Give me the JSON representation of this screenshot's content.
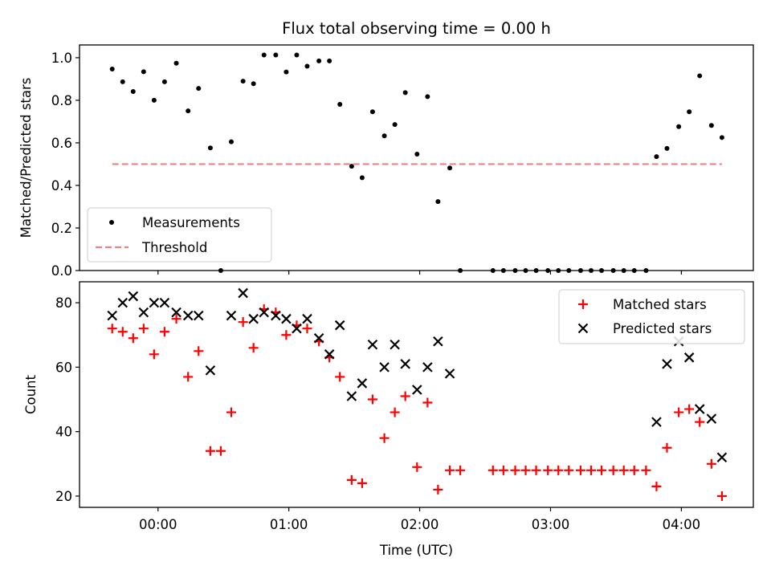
{
  "chart_data": [
    {
      "type": "scatter",
      "title": "Flux total observing time = 0.00 h",
      "xlabel": "",
      "ylabel": "Matched/Predicted stars",
      "ylim": [
        0,
        1.06
      ],
      "yticks": [
        "0.0",
        "0.2",
        "0.4",
        "0.6",
        "0.8",
        "1.0"
      ],
      "x_unit": "hours since 00:00 UTC",
      "xlim": [
        -0.6,
        4.55
      ],
      "grid": false,
      "legend_position": "lower-left",
      "series": [
        {
          "name": "Measurements",
          "marker": "dot",
          "color": "#000000",
          "points": [
            [
              -0.35,
              0.947
            ],
            [
              -0.27,
              0.887
            ],
            [
              -0.19,
              0.841
            ],
            [
              -0.11,
              0.934
            ],
            [
              -0.03,
              0.8
            ],
            [
              0.05,
              0.887
            ],
            [
              0.14,
              0.974
            ],
            [
              0.23,
              0.75
            ],
            [
              0.31,
              0.856
            ],
            [
              0.4,
              0.576
            ],
            [
              0.48,
              0.0
            ],
            [
              0.56,
              0.605
            ],
            [
              0.65,
              0.89
            ],
            [
              0.73,
              0.878
            ],
            [
              0.81,
              1.013
            ],
            [
              0.9,
              1.013
            ],
            [
              0.98,
              0.933
            ],
            [
              1.06,
              1.013
            ],
            [
              1.14,
              0.96
            ],
            [
              1.23,
              0.985
            ],
            [
              1.31,
              0.985
            ],
            [
              1.39,
              0.781
            ],
            [
              1.48,
              0.49
            ],
            [
              1.56,
              0.436
            ],
            [
              1.64,
              0.746
            ],
            [
              1.73,
              0.633
            ],
            [
              1.81,
              0.686
            ],
            [
              1.89,
              0.836
            ],
            [
              1.98,
              0.547
            ],
            [
              2.06,
              0.817
            ],
            [
              2.14,
              0.324
            ],
            [
              2.23,
              0.482
            ],
            [
              2.31,
              0.0
            ],
            [
              2.56,
              0.0
            ],
            [
              2.64,
              0.0
            ],
            [
              2.73,
              0.0
            ],
            [
              2.81,
              0.0
            ],
            [
              2.89,
              0.0
            ],
            [
              2.98,
              0.0
            ],
            [
              3.06,
              0.0
            ],
            [
              3.14,
              0.0
            ],
            [
              3.23,
              0.0
            ],
            [
              3.31,
              0.0
            ],
            [
              3.39,
              0.0
            ],
            [
              3.48,
              0.0
            ],
            [
              3.56,
              0.0
            ],
            [
              3.64,
              0.0
            ],
            [
              3.73,
              0.0
            ],
            [
              3.81,
              0.535
            ],
            [
              3.89,
              0.574
            ],
            [
              3.98,
              0.676
            ],
            [
              4.06,
              0.746
            ],
            [
              4.14,
              0.915
            ],
            [
              4.23,
              0.682
            ],
            [
              4.31,
              0.625
            ]
          ]
        },
        {
          "name": "Threshold",
          "marker": "dashed-line",
          "color": "#f08080",
          "points": [
            [
              -0.35,
              0.5
            ],
            [
              4.31,
              0.5
            ]
          ]
        }
      ]
    },
    {
      "type": "scatter",
      "title": "",
      "xlabel": "Time (UTC)",
      "ylabel": "Count",
      "ylim": [
        16.5,
        86.5
      ],
      "yticks": [
        "20",
        "40",
        "60",
        "80"
      ],
      "xticks": [
        "00:00",
        "01:00",
        "02:00",
        "03:00",
        "04:00"
      ],
      "x_unit": "hours since 00:00 UTC",
      "xlim": [
        -0.6,
        4.55
      ],
      "grid": false,
      "legend_position": "upper-right",
      "series": [
        {
          "name": "Matched stars",
          "marker": "plus",
          "color": "#ff0000",
          "points": [
            [
              -0.35,
              72
            ],
            [
              -0.27,
              71
            ],
            [
              -0.19,
              69
            ],
            [
              -0.11,
              72
            ],
            [
              -0.03,
              64
            ],
            [
              0.05,
              71
            ],
            [
              0.14,
              75
            ],
            [
              0.23,
              57
            ],
            [
              0.31,
              65
            ],
            [
              0.4,
              34
            ],
            [
              0.48,
              34
            ],
            [
              0.56,
              46
            ],
            [
              0.65,
              74
            ],
            [
              0.73,
              66
            ],
            [
              0.81,
              78
            ],
            [
              0.9,
              77
            ],
            [
              0.98,
              70
            ],
            [
              1.06,
              73
            ],
            [
              1.14,
              72
            ],
            [
              1.23,
              68
            ],
            [
              1.31,
              63
            ],
            [
              1.39,
              57
            ],
            [
              1.48,
              25
            ],
            [
              1.56,
              24
            ],
            [
              1.64,
              50
            ],
            [
              1.73,
              38
            ],
            [
              1.81,
              46
            ],
            [
              1.89,
              51
            ],
            [
              1.98,
              29
            ],
            [
              2.06,
              49
            ],
            [
              2.14,
              22
            ],
            [
              2.23,
              28
            ],
            [
              2.31,
              28
            ],
            [
              2.56,
              28
            ],
            [
              2.64,
              28
            ],
            [
              2.73,
              28
            ],
            [
              2.81,
              28
            ],
            [
              2.89,
              28
            ],
            [
              2.98,
              28
            ],
            [
              3.06,
              28
            ],
            [
              3.14,
              28
            ],
            [
              3.23,
              28
            ],
            [
              3.31,
              28
            ],
            [
              3.39,
              28
            ],
            [
              3.48,
              28
            ],
            [
              3.56,
              28
            ],
            [
              3.64,
              28
            ],
            [
              3.73,
              28
            ],
            [
              3.81,
              23
            ],
            [
              3.89,
              35
            ],
            [
              3.98,
              46
            ],
            [
              4.06,
              47
            ],
            [
              4.14,
              43
            ],
            [
              4.23,
              30
            ],
            [
              4.31,
              20
            ]
          ]
        },
        {
          "name": "Predicted stars",
          "marker": "x",
          "color": "#000000",
          "points": [
            [
              -0.35,
              76
            ],
            [
              -0.27,
              80
            ],
            [
              -0.19,
              82
            ],
            [
              -0.11,
              77
            ],
            [
              -0.03,
              80
            ],
            [
              0.05,
              80
            ],
            [
              0.14,
              77
            ],
            [
              0.23,
              76
            ],
            [
              0.31,
              76
            ],
            [
              0.4,
              59
            ],
            [
              0.56,
              76
            ],
            [
              0.65,
              83
            ],
            [
              0.73,
              75
            ],
            [
              0.81,
              77
            ],
            [
              0.9,
              76
            ],
            [
              0.98,
              75
            ],
            [
              1.06,
              72
            ],
            [
              1.14,
              75
            ],
            [
              1.23,
              69
            ],
            [
              1.31,
              64
            ],
            [
              1.39,
              73
            ],
            [
              1.48,
              51
            ],
            [
              1.56,
              55
            ],
            [
              1.64,
              67
            ],
            [
              1.73,
              60
            ],
            [
              1.81,
              67
            ],
            [
              1.89,
              61
            ],
            [
              1.98,
              53
            ],
            [
              2.06,
              60
            ],
            [
              2.14,
              68
            ],
            [
              2.23,
              58
            ],
            [
              3.81,
              43
            ],
            [
              3.89,
              61
            ],
            [
              3.98,
              68
            ],
            [
              4.06,
              63
            ],
            [
              4.14,
              47
            ],
            [
              4.23,
              44
            ],
            [
              4.31,
              32
            ]
          ]
        }
      ]
    }
  ]
}
